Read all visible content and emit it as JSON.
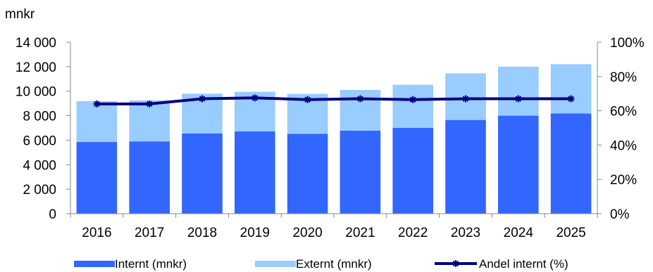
{
  "chart_data": {
    "type": "bar",
    "stacked": true,
    "categories": [
      "2016",
      "2017",
      "2018",
      "2019",
      "2020",
      "2021",
      "2022",
      "2023",
      "2024",
      "2025"
    ],
    "series": [
      {
        "name": "Internt (mnkr)",
        "type": "bar",
        "axis": "left",
        "color": "#3366ff",
        "values": [
          5850,
          5900,
          6550,
          6720,
          6520,
          6780,
          7000,
          7650,
          8000,
          8180
        ]
      },
      {
        "name": "Externt (mnkr)",
        "type": "bar",
        "axis": "left",
        "color": "#99ccff",
        "values": [
          3330,
          3350,
          3250,
          3230,
          3260,
          3320,
          3520,
          3800,
          4000,
          4020
        ]
      },
      {
        "name": "Andel internt (%)",
        "type": "line",
        "axis": "right",
        "color": "#000080",
        "marker": "asterisk",
        "values": [
          64,
          64,
          67,
          67.5,
          66.5,
          67,
          66.5,
          67,
          67,
          67
        ]
      }
    ],
    "ylabel": "mnkr",
    "ylim": [
      0,
      14000
    ],
    "yticks": [
      "0",
      "2 000",
      "4 000",
      "6 000",
      "8 000",
      "10 000",
      "12 000",
      "14 000"
    ],
    "y2lim": [
      0,
      100
    ],
    "y2ticks": [
      "0%",
      "20%",
      "40%",
      "60%",
      "80%",
      "100%"
    ],
    "grid": false,
    "legend": "bottom"
  }
}
